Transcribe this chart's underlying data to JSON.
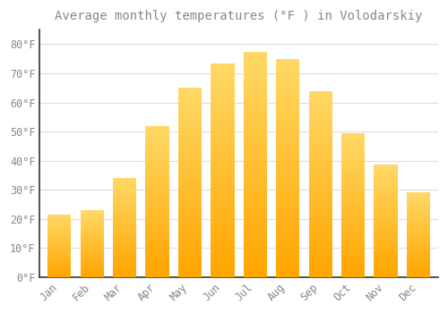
{
  "title": "Average monthly temperatures (°F ) in Volodarskiy",
  "months": [
    "Jan",
    "Feb",
    "Mar",
    "Apr",
    "May",
    "Jun",
    "Jul",
    "Aug",
    "Sep",
    "Oct",
    "Nov",
    "Dec"
  ],
  "values": [
    21.5,
    23.0,
    34.0,
    52.0,
    65.0,
    73.5,
    77.5,
    75.0,
    64.0,
    49.5,
    38.5,
    29.0
  ],
  "bar_color_top": "#FFD966",
  "bar_color_bottom": "#FFA500",
  "background_color": "#FFFFFF",
  "plot_bg_color": "#FFFFFF",
  "grid_color": "#DDDDDD",
  "text_color": "#888888",
  "spine_color": "#333333",
  "ylim": [
    0,
    85
  ],
  "yticks": [
    0,
    10,
    20,
    30,
    40,
    50,
    60,
    70,
    80
  ],
  "ytick_labels": [
    "0°F",
    "10°F",
    "20°F",
    "30°F",
    "40°F",
    "50°F",
    "60°F",
    "70°F",
    "80°F"
  ],
  "title_fontsize": 10,
  "tick_fontsize": 8.5
}
